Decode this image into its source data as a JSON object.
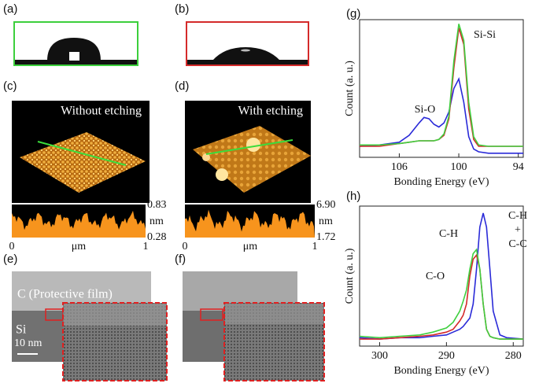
{
  "panels": {
    "a": {
      "label": "(a)"
    },
    "b": {
      "label": "(b)"
    },
    "c": {
      "label": "(c)",
      "title": "Without etching",
      "max": "0.83",
      "unit": "nm",
      "min": "0.28",
      "x_start": "0",
      "x_unit": "μm",
      "x_end": "1"
    },
    "d": {
      "label": "(d)",
      "title": "With etching",
      "max": "6.90",
      "unit": "nm",
      "min": "1.72",
      "x_start": "0",
      "x_unit": "μm",
      "x_end": "1"
    },
    "e": {
      "label": "(e)",
      "film": "C (Protective film)",
      "substrate": "Si",
      "scale": "10 nm"
    },
    "f": {
      "label": "(f)"
    }
  },
  "chart_data": [
    {
      "type": "line",
      "label": "(g)",
      "xlabel": "Bonding Energy (eV)",
      "ylabel": "Count (a. u.)",
      "annotations": [
        "Si-O",
        "Si-Si"
      ],
      "x": [
        110,
        108,
        106,
        105,
        104,
        103.5,
        103,
        102.5,
        102,
        101.5,
        101,
        100.5,
        100,
        99.5,
        99,
        98.5,
        98,
        97,
        96,
        95,
        93.5
      ],
      "xlim": [
        110,
        93.5
      ],
      "xticks": [
        106,
        100,
        94
      ],
      "ylim": [
        0,
        1
      ],
      "series": [
        {
          "color": "#2a2ad8",
          "values": [
            0.08,
            0.09,
            0.11,
            0.16,
            0.25,
            0.29,
            0.28,
            0.24,
            0.22,
            0.25,
            0.33,
            0.5,
            0.57,
            0.4,
            0.15,
            0.06,
            0.04,
            0.03,
            0.03,
            0.03,
            0.03
          ]
        },
        {
          "color": "#d42a2a",
          "values": [
            0.08,
            0.08,
            0.1,
            0.11,
            0.12,
            0.12,
            0.12,
            0.12,
            0.13,
            0.16,
            0.28,
            0.65,
            0.94,
            0.82,
            0.35,
            0.13,
            0.08,
            0.08,
            0.08,
            0.08,
            0.08
          ]
        },
        {
          "color": "#3fcf3f",
          "values": [
            0.09,
            0.09,
            0.1,
            0.11,
            0.12,
            0.12,
            0.12,
            0.12,
            0.13,
            0.17,
            0.3,
            0.7,
            0.97,
            0.85,
            0.4,
            0.15,
            0.09,
            0.08,
            0.08,
            0.08,
            0.08
          ]
        }
      ]
    },
    {
      "type": "line",
      "label": "(h)",
      "xlabel": "Bonding Energy (eV)",
      "ylabel": "Count (a. u.)",
      "annotations": [
        "C-O",
        "C-H",
        "C-H",
        "+",
        "C-C"
      ],
      "x": [
        303,
        300,
        297,
        294,
        292,
        290,
        289,
        288,
        287.5,
        287,
        286.5,
        286,
        285.5,
        285,
        284.5,
        284,
        283.5,
        283,
        282,
        281,
        278.5
      ],
      "xlim": [
        303,
        278.5
      ],
      "xticks": [
        300,
        290,
        280
      ],
      "ylim": [
        0,
        1
      ],
      "series": [
        {
          "color": "#2a2ad8",
          "values": [
            0.06,
            0.05,
            0.06,
            0.06,
            0.07,
            0.08,
            0.1,
            0.12,
            0.14,
            0.17,
            0.2,
            0.3,
            0.55,
            0.85,
            0.95,
            0.85,
            0.55,
            0.25,
            0.08,
            0.06,
            0.05
          ]
        },
        {
          "color": "#d42a2a",
          "values": [
            0.05,
            0.05,
            0.06,
            0.07,
            0.08,
            0.1,
            0.12,
            0.18,
            0.22,
            0.3,
            0.5,
            0.62,
            0.65,
            0.55,
            0.3,
            0.12,
            0.07,
            0.06,
            0.05,
            0.05,
            0.05
          ]
        },
        {
          "color": "#3fcf3f",
          "values": [
            0.07,
            0.06,
            0.07,
            0.08,
            0.1,
            0.13,
            0.17,
            0.25,
            0.32,
            0.4,
            0.55,
            0.66,
            0.69,
            0.55,
            0.3,
            0.12,
            0.07,
            0.06,
            0.05,
            0.05,
            0.05
          ]
        }
      ]
    }
  ]
}
